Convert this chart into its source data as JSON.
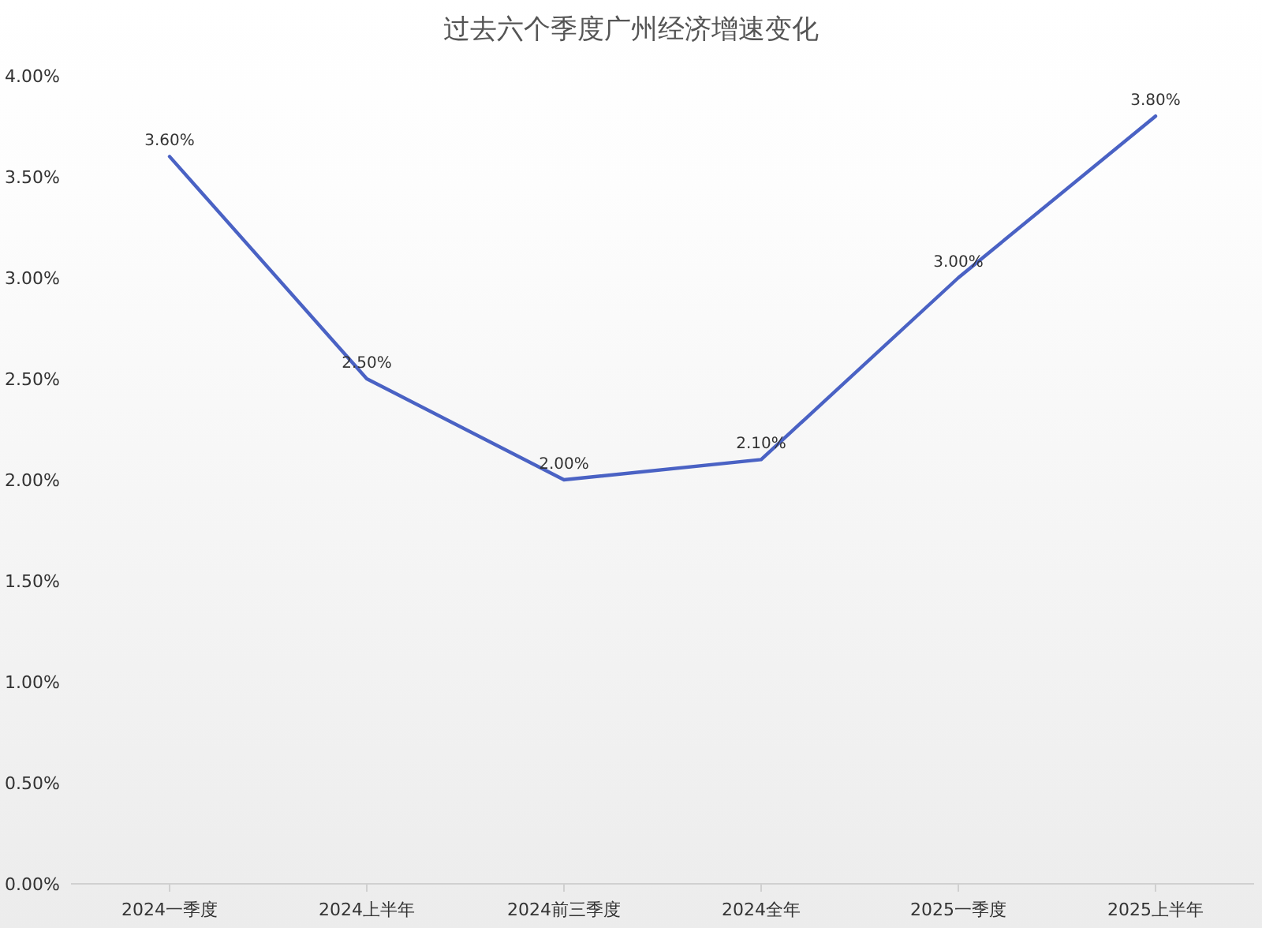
{
  "chart_data": {
    "type": "line",
    "title": "过去六个季度广州经济增速变化",
    "categories": [
      "2024一季度",
      "2024上半年",
      "2024前三季度",
      "2024全年",
      "2025一季度",
      "2025上半年"
    ],
    "series": [
      {
        "color": "#4a62c4",
        "values": [
          3.6,
          2.5,
          2.0,
          2.1,
          3.0,
          3.8
        ],
        "value_labels": [
          "3.60%",
          "2.50%",
          "2.00%",
          "2.10%",
          "3.00%",
          "3.80%"
        ]
      }
    ],
    "ylim": [
      0,
      4
    ],
    "yticks": [
      {
        "value": 0,
        "label": "0.00%"
      },
      {
        "value": 0.5,
        "label": "0.50%"
      },
      {
        "value": 1,
        "label": "1.00%"
      },
      {
        "value": 1.5,
        "label": "1.50%"
      },
      {
        "value": 2,
        "label": "2.00%"
      },
      {
        "value": 2.5,
        "label": "2.50%"
      },
      {
        "value": 3,
        "label": "3.00%"
      },
      {
        "value": 3.5,
        "label": "3.50%"
      },
      {
        "value": 4,
        "label": "4.00%"
      }
    ],
    "marker": "none",
    "line_style": "solid",
    "grid": false
  }
}
